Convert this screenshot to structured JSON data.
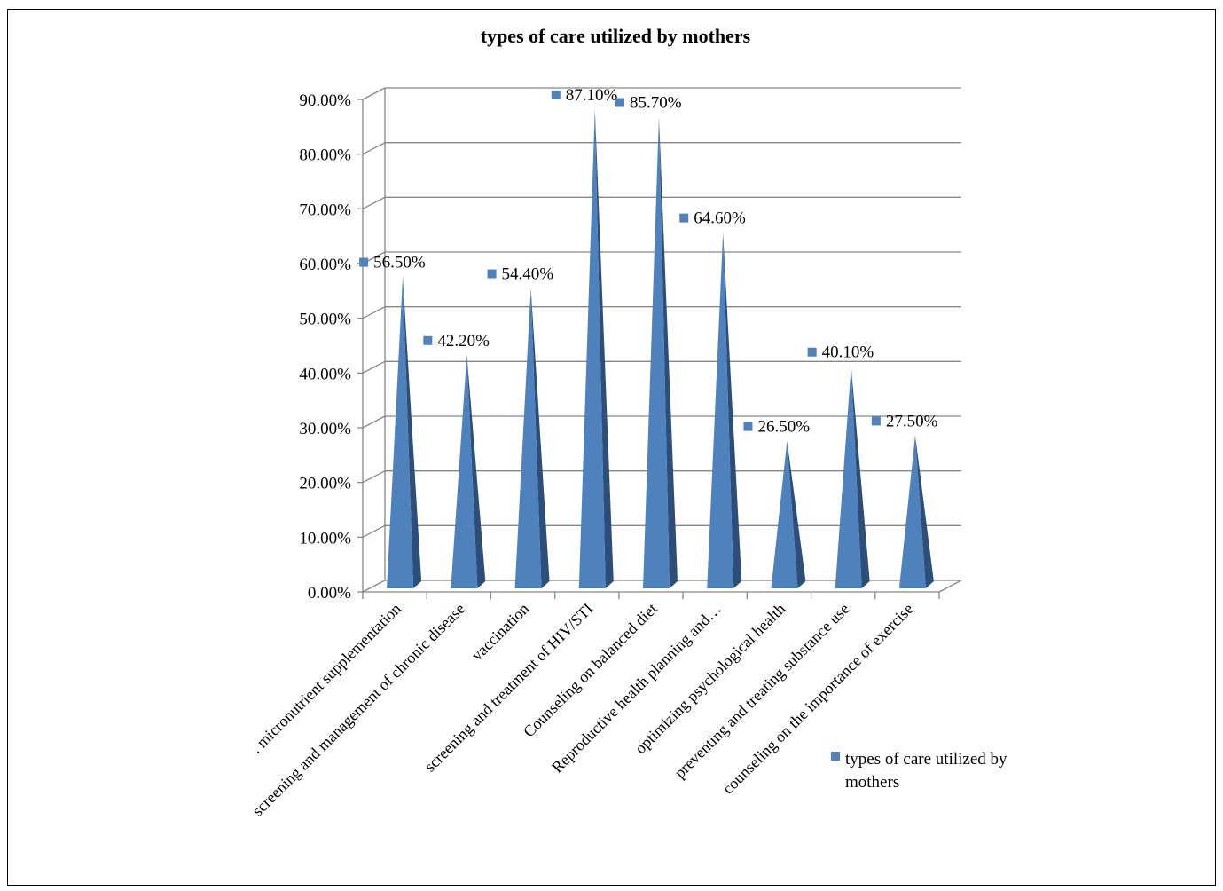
{
  "chart_data": {
    "type": "bar",
    "bar_shape": "pyramid",
    "three_d": true,
    "title": "types of care utilized by mothers",
    "xlabel": "",
    "ylabel": "",
    "ylim": [
      0,
      0.9
    ],
    "y_ticks": [
      0,
      0.1,
      0.2,
      0.3,
      0.4,
      0.5,
      0.6,
      0.7,
      0.8,
      0.9
    ],
    "y_tick_labels": [
      "0.00%",
      "10.00%",
      "20.00%",
      "30.00%",
      "40.00%",
      "50.00%",
      "60.00%",
      "70.00%",
      "80.00%",
      "90.00%"
    ],
    "grid": true,
    "legend_position": "bottom-right",
    "categories": [
      ". micronutrient supplementation",
      "screening and management of chronic disease",
      "vaccination",
      "screening and treatment of HIV/STI",
      "Counseling on balanced diet",
      "Reproductive health planning and…",
      "optimizing psychological health",
      "preventing and treating substance use",
      "counseling on the importance of exercise"
    ],
    "series": [
      {
        "name": "types of care utilized by mothers",
        "color": "#4F81BD",
        "values": [
          0.565,
          0.422,
          0.544,
          0.871,
          0.857,
          0.646,
          0.265,
          0.401,
          0.275
        ],
        "data_labels": [
          "56.50%",
          "42.20%",
          "54.40%",
          "87.10%",
          "85.70%",
          "64.60%",
          "26.50%",
          "40.10%",
          "27.50%"
        ]
      }
    ]
  }
}
